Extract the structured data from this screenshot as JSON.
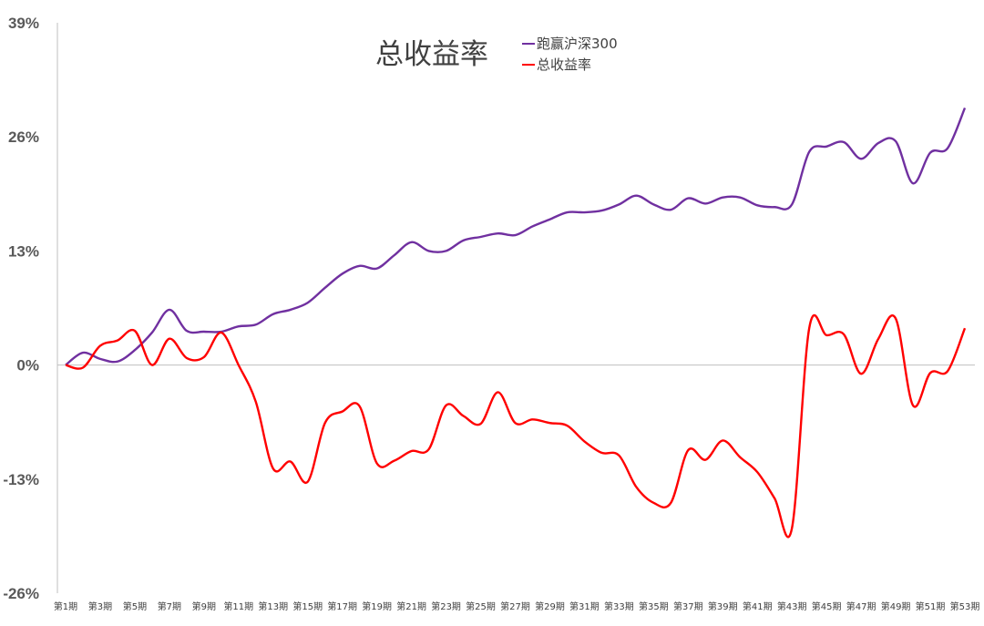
{
  "chart_data": {
    "type": "line",
    "title": "总收益率",
    "ylim": [
      -26,
      39
    ],
    "yticks": [
      39,
      26,
      13,
      0,
      -13,
      -26
    ],
    "ytick_labels": [
      "39%",
      "26%",
      "13%",
      "0%",
      "-13%",
      "-26%"
    ],
    "x_tick_labels": [
      "第1期",
      "第3期",
      "第5期",
      "第7期",
      "第9期",
      "第11期",
      "第13期",
      "第15期",
      "第17期",
      "第19期",
      "第21期",
      "第23期",
      "第25期",
      "第27期",
      "第29期",
      "第31期",
      "第33期",
      "第35期",
      "第37期",
      "第39期",
      "第41期",
      "第43期",
      "第45期",
      "第47期",
      "第49期",
      "第51期",
      "第53期"
    ],
    "grid": false,
    "legend_position": "top",
    "x": [
      1,
      2,
      3,
      4,
      5,
      6,
      7,
      8,
      9,
      10,
      11,
      12,
      13,
      14,
      15,
      16,
      17,
      18,
      19,
      20,
      21,
      22,
      23,
      24,
      25,
      26,
      27,
      28,
      29,
      30,
      31,
      32,
      33,
      34,
      35,
      36,
      37,
      38,
      39,
      40,
      41,
      42,
      43,
      44,
      45,
      46,
      47,
      48,
      49,
      50,
      51,
      52,
      53
    ],
    "series": [
      {
        "name": "跑赢沪深300",
        "color": "#7030A0",
        "values": [
          0,
          1.4,
          0.7,
          0.4,
          1.7,
          3.7,
          6.3,
          3.9,
          3.8,
          3.8,
          4.4,
          4.6,
          5.8,
          6.3,
          7.1,
          8.8,
          10.4,
          11.3,
          11.0,
          12.5,
          14.0,
          13.0,
          13.0,
          14.2,
          14.6,
          15.0,
          14.8,
          15.8,
          16.6,
          17.4,
          17.4,
          17.6,
          18.3,
          19.3,
          18.3,
          17.7,
          19.0,
          18.4,
          19.1,
          19.1,
          18.2,
          18.0,
          18.3,
          24.3,
          24.9,
          25.4,
          23.5,
          25.3,
          25.5,
          20.7,
          24.2,
          24.7,
          29.3
        ]
      },
      {
        "name": "总收益率",
        "color": "#FF0000",
        "values": [
          0,
          -0.3,
          2.2,
          2.8,
          3.9,
          0,
          3.0,
          0.8,
          0.9,
          3.7,
          0,
          -4.2,
          -11.8,
          -11.0,
          -13.3,
          -6.6,
          -5.3,
          -4.7,
          -11.2,
          -10.9,
          -9.8,
          -9.6,
          -4.6,
          -5.8,
          -6.7,
          -3.1,
          -6.6,
          -6.2,
          -6.6,
          -6.9,
          -8.7,
          -10.0,
          -10.3,
          -13.9,
          -15.7,
          -15.7,
          -9.7,
          -10.8,
          -8.6,
          -10.5,
          -12.2,
          -15.2,
          -18.6,
          4.2,
          3.4,
          3.5,
          -1.0,
          3.0,
          5.3,
          -4.6,
          -0.9,
          -0.7,
          4.2
        ]
      }
    ]
  }
}
